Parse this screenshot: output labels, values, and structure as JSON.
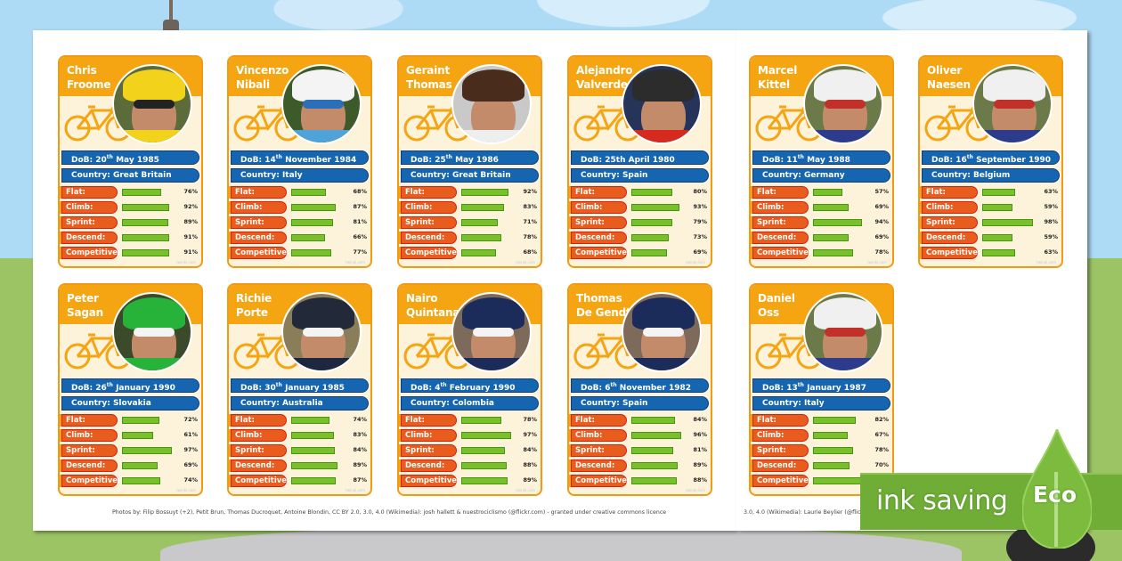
{
  "colors": {
    "card_orange": "#f5a412",
    "card_border": "#f29a13",
    "card_bg": "#fdf3da",
    "pill_blue": "#1565b0",
    "label_red": "#e85c1e",
    "bar_green": "#7bbf2a",
    "eco_green": "#6fad36"
  },
  "stat_labels": [
    "Flat:",
    "Climb:",
    "Sprint:",
    "Descend:",
    "Competitive:"
  ],
  "cards": [
    {
      "name_first": "Chris",
      "name_last": "Froome",
      "dob_day": "20",
      "dob_suffix": "th",
      "dob_rest": "May 1985",
      "country_label": "Country: Great Britain",
      "stats": [
        76,
        92,
        89,
        91,
        91
      ],
      "theme": "yellow"
    },
    {
      "name_first": "Vincenzo",
      "name_last": "Nibali",
      "dob_day": "14",
      "dob_suffix": "th",
      "dob_rest": "November 1984",
      "country_label": "Country: Italy",
      "stats": [
        68,
        87,
        81,
        66,
        77
      ],
      "theme": "blue"
    },
    {
      "name_first": "Geraint",
      "name_last": "Thomas",
      "dob_day": "25",
      "dob_suffix": "th",
      "dob_rest": "May 1986",
      "country_label": "Country: Great Britain",
      "stats": [
        92,
        83,
        71,
        78,
        68
      ],
      "theme": "plain"
    },
    {
      "name_first": "Alejandro",
      "name_last": "Valverde",
      "dob_day": "25th",
      "dob_suffix": "",
      "dob_rest": "April 1980",
      "country_label": "Country: Spain",
      "stats": [
        80,
        93,
        79,
        73,
        69
      ],
      "theme": "red"
    },
    {
      "name_first": "Marcel",
      "name_last": "Kittel",
      "dob_day": "11",
      "dob_suffix": "th",
      "dob_rest": "May 1988",
      "country_label": "Country: Germany",
      "stats": [
        57,
        69,
        94,
        69,
        78
      ],
      "theme": "white"
    },
    {
      "name_first": "Oliver",
      "name_last": "Naesen",
      "dob_day": "16",
      "dob_suffix": "th",
      "dob_rest": "September 1990",
      "country_label": "Country: Belgium",
      "stats": [
        63,
        59,
        98,
        59,
        63
      ],
      "theme": "white"
    },
    {
      "name_first": "Peter",
      "name_last": "Sagan",
      "dob_day": "26",
      "dob_suffix": "th",
      "dob_rest": "January 1990",
      "country_label": "Country: Slovakia",
      "stats": [
        72,
        61,
        97,
        69,
        74
      ],
      "theme": "green"
    },
    {
      "name_first": "Richie",
      "name_last": "Porte",
      "dob_day": "30",
      "dob_suffix": "th",
      "dob_rest": "January 1985",
      "country_label": "Country: Australia",
      "stats": [
        74,
        83,
        84,
        89,
        87
      ],
      "theme": "dark"
    },
    {
      "name_first": "Nairo",
      "name_last": "Quintana",
      "dob_day": "4",
      "dob_suffix": "th",
      "dob_rest": "February 1990",
      "country_label": "Country: Colombia",
      "stats": [
        78,
        97,
        84,
        88,
        89
      ],
      "theme": "navy"
    },
    {
      "name_first": "Thomas",
      "name_last": "De Gendt",
      "dob_day": "6",
      "dob_suffix": "th",
      "dob_rest": "November 1982",
      "country_label": "Country: Spain",
      "stats": [
        84,
        96,
        81,
        89,
        88
      ],
      "theme": "navy"
    },
    {
      "name_first": "Daniel",
      "name_last": "Oss",
      "dob_day": "13",
      "dob_suffix": "th",
      "dob_rest": "January 1987",
      "country_label": "Country: Italy",
      "stats": [
        82,
        67,
        78,
        70,
        null
      ],
      "theme": "white"
    }
  ],
  "dob_prefix": "DoB: ",
  "watermark": "twinkl.com",
  "credits": {
    "left": "Photos by: Filip Bossuyt (+2), Petit Brun, Thomas Ducroquet, Antoine Blondin, CC BY 2.0, 3.0, 4.0 (Wikimedia): josh hallett & nuestrociclismo (@flickr.com) - granted under creative commons licence",
    "right": "3.0, 4.0 (Wikimedia): Laurie Beylier (@flickr.c"
  },
  "eco_badge": {
    "text": "ink saving",
    "label": "Eco"
  }
}
